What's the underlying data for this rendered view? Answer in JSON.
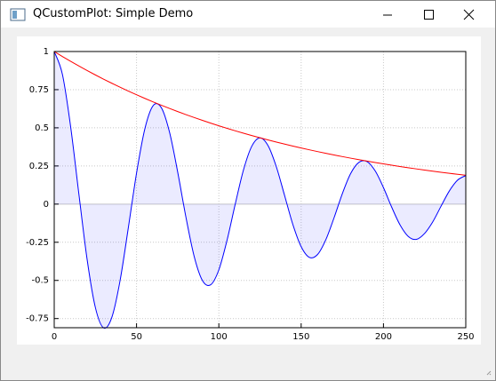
{
  "window": {
    "title": "QCustomPlot: Simple Demo"
  },
  "chart_data": {
    "type": "line",
    "x": [
      0,
      5,
      10,
      15,
      20,
      25,
      30,
      35,
      40,
      45,
      50,
      55,
      60,
      65,
      70,
      75,
      80,
      85,
      90,
      95,
      100,
      105,
      110,
      115,
      120,
      125,
      130,
      135,
      140,
      145,
      150,
      155,
      160,
      165,
      170,
      175,
      180,
      185,
      190,
      195,
      200,
      205,
      210,
      215,
      220,
      225,
      230,
      235,
      240,
      245,
      250
    ],
    "series": [
      {
        "color": "#0000ff",
        "fill": "rgba(0,0,255,0.08)",
        "values": [
          1,
          0.849,
          0.505,
          0.064,
          -0.364,
          -0.678,
          -0.811,
          -0.742,
          -0.501,
          -0.156,
          0.203,
          0.491,
          0.644,
          0.633,
          0.473,
          0.21,
          -0.085,
          -0.342,
          -0.5,
          -0.529,
          -0.431,
          -0.236,
          0.002,
          0.225,
          0.379,
          0.434,
          0.381,
          0.242,
          0.054,
          -0.135,
          -0.279,
          -0.349,
          -0.33,
          -0.233,
          -0.089,
          0.068,
          0.199,
          0.273,
          0.279,
          0.217,
          0.108,
          -0.02,
          -0.135,
          -0.211,
          -0.231,
          -0.192,
          -0.115,
          -0.013,
          0.086,
          0.157,
          0.187
        ]
      },
      {
        "color": "#ff0000",
        "values": [
          1,
          0.9672,
          0.9355,
          0.9048,
          0.8752,
          0.8465,
          0.8187,
          0.7919,
          0.7659,
          0.7408,
          0.7165,
          0.6931,
          0.6703,
          0.6484,
          0.6271,
          0.6065,
          0.5866,
          0.5674,
          0.5488,
          0.5308,
          0.5134,
          0.4966,
          0.4803,
          0.4646,
          0.4493,
          0.4346,
          0.4204,
          0.4066,
          0.3932,
          0.3804,
          0.3679,
          0.3558,
          0.3442,
          0.3329,
          0.322,
          0.3114,
          0.3012,
          0.2913,
          0.2818,
          0.2725,
          0.2636,
          0.255,
          0.2466,
          0.2385,
          0.2307,
          0.2231,
          0.2158,
          0.2087,
          0.2019,
          0.1953,
          0.1889
        ]
      }
    ],
    "xlim": [
      0,
      250
    ],
    "xticks": [
      0,
      50,
      100,
      150,
      200,
      250
    ],
    "ylim": [
      -0.81,
      1
    ],
    "yticks": [
      -0.75,
      -0.5,
      -0.25,
      0,
      0.25,
      0.5,
      0.75,
      1
    ],
    "grid": true
  }
}
